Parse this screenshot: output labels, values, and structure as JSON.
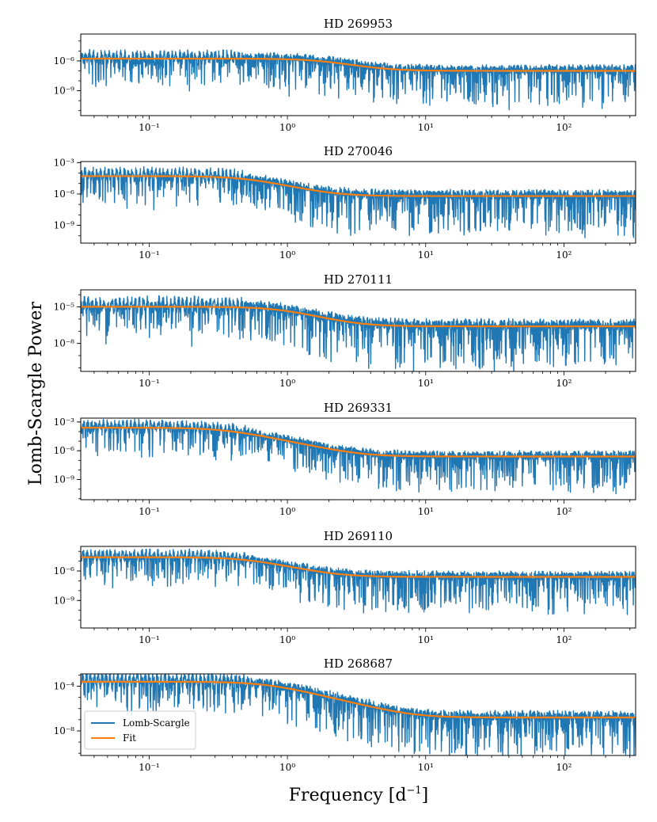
{
  "figure": {
    "xlabel": "Frequency [d",
    "xlabel_sup": "−1",
    "xlabel_close": "]",
    "ylabel": "Lomb-Scargle Power",
    "colors": {
      "lomb_scargle": "#1f77b4",
      "fit": "#ff7f0e"
    },
    "legend": {
      "placement": "lower-left",
      "panel": 5,
      "entries": [
        "Lomb-Scargle",
        "Fit"
      ]
    }
  },
  "chart_data": [
    {
      "type": "line",
      "title": "HD 269953",
      "xscale": "log",
      "yscale": "log",
      "xlim": [
        0.032,
        330
      ],
      "ylim_exp": [
        -11.5,
        -3.3
      ],
      "xticks": [
        {
          "exp": -1,
          "label": "10⁻¹"
        },
        {
          "exp": 0,
          "label": "10⁰"
        },
        {
          "exp": 1,
          "label": "10¹"
        },
        {
          "exp": 2,
          "label": "10²"
        }
      ],
      "yticks": [
        {
          "exp": -6,
          "label": "10⁻⁶"
        },
        {
          "exp": -9,
          "label": "10⁻⁹"
        }
      ],
      "series": [
        {
          "name": "Lomb-Scargle",
          "style": "noisy_periodogram",
          "noise_floor_exp": -7.0,
          "low_freq_level_exp": -5.8,
          "knee_freq": 1.8
        },
        {
          "name": "Fit",
          "style": "lorentzian_fit",
          "low_freq_level_exp": -5.8,
          "white_noise_exp": -7.0,
          "knee_freq": 1.8
        }
      ]
    },
    {
      "type": "line",
      "title": "HD 270046",
      "xscale": "log",
      "yscale": "log",
      "xlim": [
        0.032,
        330
      ],
      "ylim_exp": [
        -10.7,
        -2.9
      ],
      "xticks": [
        {
          "exp": -1,
          "label": "10⁻¹"
        },
        {
          "exp": 0,
          "label": "10⁰"
        },
        {
          "exp": 1,
          "label": "10¹"
        },
        {
          "exp": 2,
          "label": "10²"
        }
      ],
      "yticks": [
        {
          "exp": -3,
          "label": "10⁻³"
        },
        {
          "exp": -6,
          "label": "10⁻⁶"
        },
        {
          "exp": -9,
          "label": "10⁻⁹"
        }
      ],
      "series": [
        {
          "name": "Lomb-Scargle",
          "style": "noisy_periodogram",
          "noise_floor_exp": -6.2,
          "low_freq_level_exp": -4.3,
          "knee_freq": 0.5
        },
        {
          "name": "Fit",
          "style": "lorentzian_fit",
          "low_freq_level_exp": -4.3,
          "white_noise_exp": -6.2,
          "knee_freq": 0.5
        }
      ]
    },
    {
      "type": "line",
      "title": "HD 270111",
      "xscale": "log",
      "yscale": "log",
      "xlim": [
        0.032,
        330
      ],
      "ylim_exp": [
        -10.3,
        -3.6
      ],
      "xticks": [
        {
          "exp": -1,
          "label": "10⁻¹"
        },
        {
          "exp": 0,
          "label": "10⁰"
        },
        {
          "exp": 1,
          "label": "10¹"
        },
        {
          "exp": 2,
          "label": "10²"
        }
      ],
      "yticks": [
        {
          "exp": -5,
          "label": "10⁻⁵"
        },
        {
          "exp": -8,
          "label": "10⁻⁸"
        }
      ],
      "series": [
        {
          "name": "Lomb-Scargle",
          "style": "noisy_periodogram",
          "noise_floor_exp": -6.6,
          "low_freq_level_exp": -5.0,
          "knee_freq": 0.9
        },
        {
          "name": "Fit",
          "style": "lorentzian_fit",
          "low_freq_level_exp": -5.0,
          "white_noise_exp": -6.6,
          "knee_freq": 0.9
        }
      ]
    },
    {
      "type": "line",
      "title": "HD 269331",
      "xscale": "log",
      "yscale": "log",
      "xlim": [
        0.032,
        330
      ],
      "ylim_exp": [
        -11.1,
        -2.6
      ],
      "xticks": [
        {
          "exp": -1,
          "label": "10⁻¹"
        },
        {
          "exp": 0,
          "label": "10⁰"
        },
        {
          "exp": 1,
          "label": "10¹"
        },
        {
          "exp": 2,
          "label": "10²"
        }
      ],
      "yticks": [
        {
          "exp": -3,
          "label": "10⁻³"
        },
        {
          "exp": -6,
          "label": "10⁻⁶"
        },
        {
          "exp": -9,
          "label": "10⁻⁹"
        }
      ],
      "series": [
        {
          "name": "Lomb-Scargle",
          "style": "noisy_periodogram",
          "noise_floor_exp": -6.6,
          "low_freq_level_exp": -3.6,
          "knee_freq": 0.35
        },
        {
          "name": "Fit",
          "style": "lorentzian_fit",
          "low_freq_level_exp": -3.6,
          "white_noise_exp": -6.6,
          "knee_freq": 0.35
        }
      ]
    },
    {
      "type": "line",
      "title": "HD 269110",
      "xscale": "log",
      "yscale": "log",
      "xlim": [
        0.032,
        330
      ],
      "ylim_exp": [
        -11.8,
        -3.5
      ],
      "xticks": [
        {
          "exp": -1,
          "label": "10⁻¹"
        },
        {
          "exp": 0,
          "label": "10⁰"
        },
        {
          "exp": 1,
          "label": "10¹"
        },
        {
          "exp": 2,
          "label": "10²"
        }
      ],
      "yticks": [
        {
          "exp": -6,
          "label": "10⁻⁶"
        },
        {
          "exp": -9,
          "label": "10⁻⁹"
        }
      ],
      "series": [
        {
          "name": "Lomb-Scargle",
          "style": "noisy_periodogram",
          "noise_floor_exp": -6.6,
          "low_freq_level_exp": -4.6,
          "knee_freq": 0.5
        },
        {
          "name": "Fit",
          "style": "lorentzian_fit",
          "low_freq_level_exp": -4.6,
          "white_noise_exp": -6.6,
          "knee_freq": 0.5
        }
      ]
    },
    {
      "type": "line",
      "title": "HD 268687",
      "xscale": "log",
      "yscale": "log",
      "xlim": [
        0.032,
        330
      ],
      "ylim_exp": [
        -10.2,
        -2.9
      ],
      "xticks": [
        {
          "exp": -1,
          "label": "10⁻¹"
        },
        {
          "exp": 0,
          "label": "10⁰"
        },
        {
          "exp": 1,
          "label": "10¹"
        },
        {
          "exp": 2,
          "label": "10²"
        }
      ],
      "yticks": [
        {
          "exp": -4,
          "label": "10⁻⁴"
        },
        {
          "exp": -8,
          "label": "10⁻⁸"
        }
      ],
      "series": [
        {
          "name": "Lomb-Scargle",
          "style": "noisy_periodogram",
          "noise_floor_exp": -6.8,
          "low_freq_level_exp": -3.6,
          "knee_freq": 0.7
        },
        {
          "name": "Fit",
          "style": "lorentzian_fit",
          "low_freq_level_exp": -3.6,
          "white_noise_exp": -6.8,
          "knee_freq": 0.7
        }
      ]
    }
  ]
}
